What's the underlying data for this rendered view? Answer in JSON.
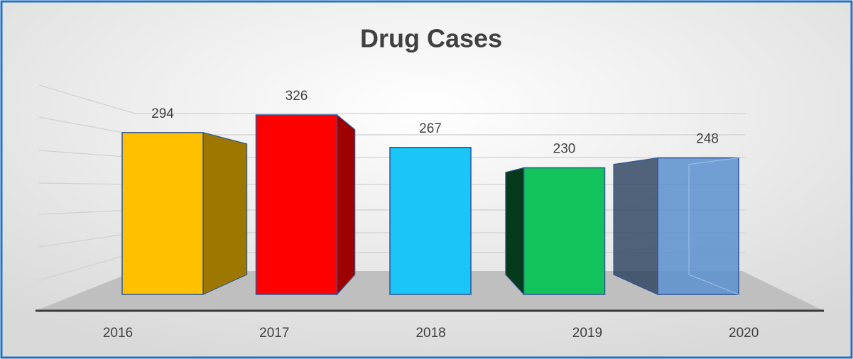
{
  "chart_data": {
    "type": "bar3d",
    "title": "Drug Cases",
    "categories": [
      "2016",
      "2017",
      "2018",
      "2019",
      "2020"
    ],
    "values": [
      294,
      326,
      267,
      230,
      248
    ],
    "colors": [
      "#ffc000",
      "#ff0000",
      "#19c6f7",
      "#12c25a",
      "#5b8fd0"
    ]
  }
}
